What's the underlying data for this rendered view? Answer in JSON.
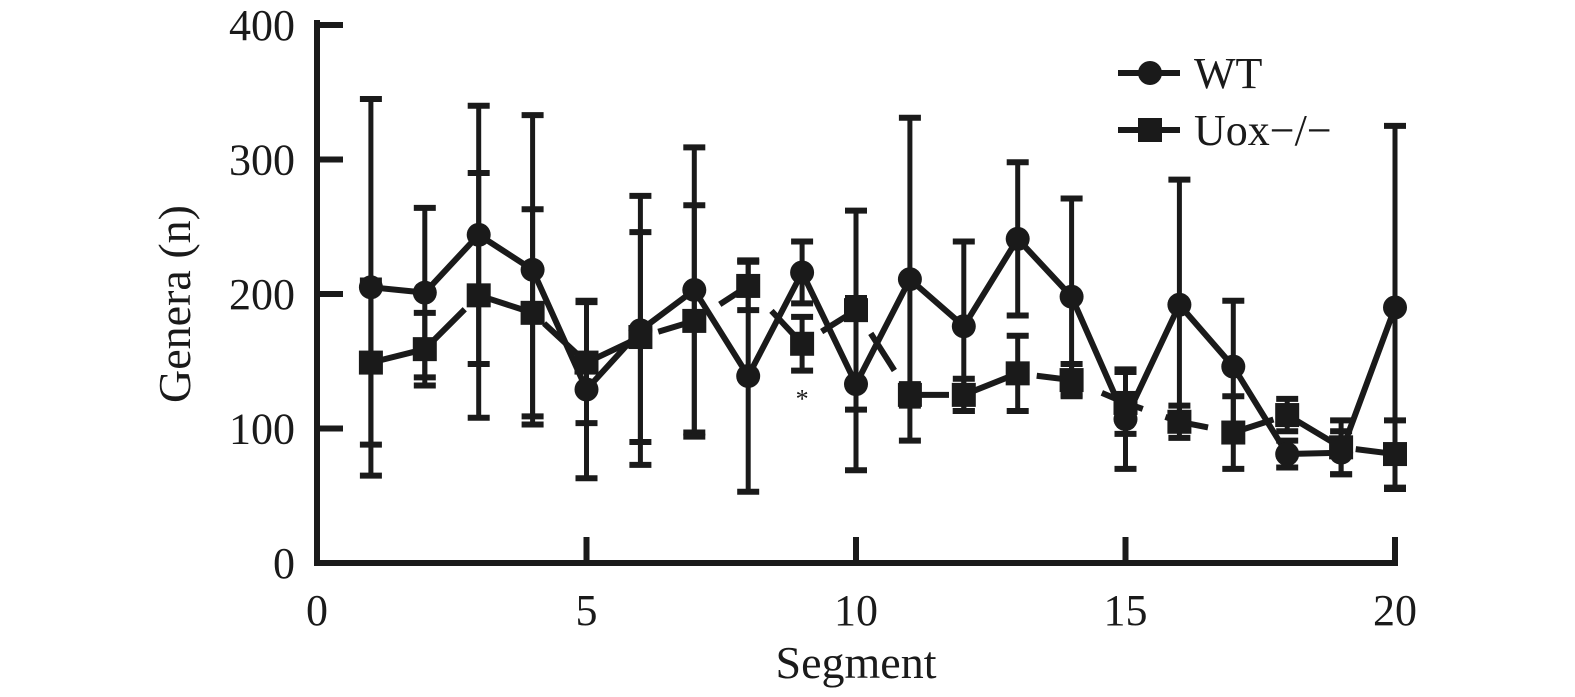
{
  "chart_data": {
    "type": "line",
    "title": "",
    "xlabel": "Segment",
    "ylabel": "Genera (n)",
    "xlim": [
      0,
      20
    ],
    "ylim": [
      0,
      400
    ],
    "xticks": [
      0,
      5,
      10,
      15,
      20
    ],
    "yticks": [
      0,
      100,
      200,
      300,
      400
    ],
    "grid": false,
    "legend_position": "top-right",
    "x": [
      1,
      2,
      3,
      4,
      5,
      6,
      7,
      8,
      9,
      10,
      11,
      12,
      13,
      14,
      15,
      16,
      17,
      18,
      19,
      20
    ],
    "series": [
      {
        "name": "WT",
        "marker": "circle",
        "line_style": "solid",
        "color": "#1a1a1a",
        "values": [
          205,
          201,
          244,
          218,
          129,
          173,
          203,
          139,
          216,
          133,
          211,
          176,
          241,
          198,
          107,
          192,
          146,
          81,
          82,
          190
        ],
        "errors": [
          140,
          63,
          96,
          115,
          66,
          100,
          106,
          86,
          23,
          64,
          120,
          63,
          57,
          73,
          37,
          93,
          49,
          10,
          16,
          135
        ]
      },
      {
        "name": "Uox−/−",
        "marker": "square",
        "line_style": "dashed",
        "color": "#1a1a1a",
        "values": [
          149,
          159,
          199,
          186,
          149,
          168,
          180,
          206,
          163,
          188,
          125,
          125,
          141,
          136,
          119,
          105,
          97,
          110,
          86,
          81
        ],
        "errors": [
          61,
          27,
          91,
          77,
          45,
          78,
          86,
          18,
          20,
          74,
          8,
          12,
          28,
          12,
          23,
          12,
          27,
          12,
          20,
          25
        ]
      }
    ],
    "annotations": [
      {
        "x": 9,
        "y": 126,
        "text": "*"
      }
    ]
  }
}
